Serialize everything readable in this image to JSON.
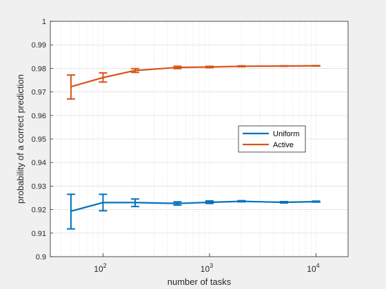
{
  "chart_data": {
    "type": "line",
    "xlabel": "number of tasks",
    "ylabel": "probability of a correct prediction",
    "xscale": "log",
    "xlim": [
      32,
      20000
    ],
    "ylim": [
      0.9,
      1.0
    ],
    "grid": "minor dotted vertical, major horizontal",
    "legend_placement": "center-right",
    "y_ticks": [
      "0.9",
      "0.91",
      "0.92",
      "0.93",
      "0.94",
      "0.95",
      "0.96",
      "0.97",
      "0.98",
      "0.99",
      "1"
    ],
    "x_ticks": [
      {
        "value": 100,
        "base": "10",
        "exp": "2"
      },
      {
        "value": 1000,
        "base": "10",
        "exp": "3"
      },
      {
        "value": 10000,
        "base": "10",
        "exp": "4"
      }
    ],
    "series": [
      {
        "name": "Uniform",
        "color": "#0072BD",
        "x": [
          50,
          100,
          200,
          500,
          1000,
          2000,
          5000,
          10000,
          11000
        ],
        "y": [
          0.9193,
          0.923,
          0.923,
          0.9226,
          0.9231,
          0.9235,
          0.9231,
          0.9234,
          0.9232
        ],
        "err_low": [
          0.9118,
          0.9195,
          0.9213,
          0.9219,
          0.9226,
          0.9233,
          0.9228,
          0.9232,
          null
        ],
        "err_high": [
          0.9265,
          0.9265,
          0.9245,
          0.9233,
          0.9237,
          0.9238,
          0.9234,
          0.9236,
          null
        ]
      },
      {
        "name": "Active",
        "color": "#D95319",
        "x": [
          50,
          100,
          200,
          500,
          1000,
          2000,
          5000,
          10000,
          11000
        ],
        "y": [
          0.9722,
          0.9761,
          0.9791,
          0.9804,
          0.9806,
          0.9809,
          0.981,
          0.9811,
          0.9811
        ],
        "err_low": [
          0.967,
          0.9742,
          0.9783,
          0.9799,
          0.9803,
          0.9807,
          0.9809,
          0.981,
          null
        ],
        "err_high": [
          0.9772,
          0.9781,
          0.9799,
          0.9809,
          0.9809,
          0.9811,
          0.9811,
          0.9812,
          null
        ]
      }
    ]
  }
}
